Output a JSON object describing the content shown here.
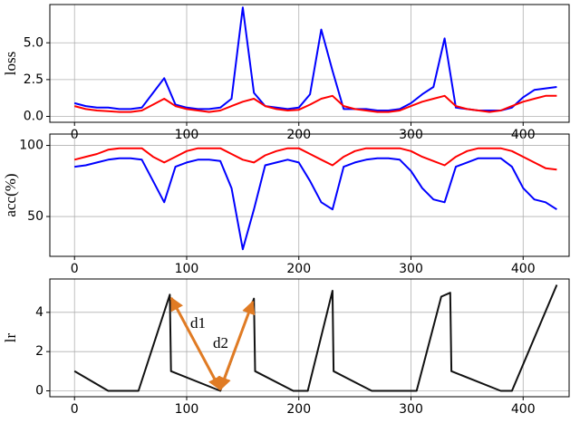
{
  "chart_data": [
    {
      "type": "line",
      "ylabel": "loss",
      "grid": true,
      "xlim": [
        -22,
        441
      ],
      "xticks": [
        0,
        100,
        200,
        300,
        400
      ],
      "ylim": [
        -0.4,
        7.6
      ],
      "yticks": [
        {
          "value": 0,
          "label": "0.0"
        },
        2.5,
        {
          "value": 5,
          "label": "5.0"
        }
      ],
      "x": [
        0,
        10,
        20,
        30,
        40,
        50,
        60,
        70,
        80,
        90,
        100,
        110,
        120,
        130,
        140,
        150,
        160,
        170,
        180,
        190,
        200,
        210,
        220,
        230,
        240,
        250,
        260,
        270,
        280,
        290,
        300,
        310,
        320,
        330,
        340,
        350,
        360,
        370,
        380,
        390,
        400,
        410,
        420,
        430
      ],
      "series": [
        {
          "color": "#0000ff",
          "values": [
            0.9,
            0.7,
            0.6,
            0.6,
            0.5,
            0.5,
            0.6,
            1.6,
            2.6,
            0.8,
            0.6,
            0.5,
            0.5,
            0.6,
            1.2,
            7.4,
            1.6,
            0.7,
            0.6,
            0.5,
            0.6,
            1.5,
            5.9,
            3.1,
            0.5,
            0.5,
            0.5,
            0.4,
            0.4,
            0.5,
            0.9,
            1.5,
            2.0,
            5.3,
            0.6,
            0.5,
            0.4,
            0.4,
            0.4,
            0.6,
            1.3,
            1.8,
            1.9,
            2.0
          ]
        },
        {
          "color": "#ff0000",
          "values": [
            0.7,
            0.5,
            0.4,
            0.35,
            0.3,
            0.3,
            0.4,
            0.8,
            1.2,
            0.7,
            0.5,
            0.4,
            0.3,
            0.4,
            0.7,
            1.0,
            1.2,
            0.7,
            0.5,
            0.4,
            0.45,
            0.8,
            1.2,
            1.4,
            0.7,
            0.5,
            0.4,
            0.3,
            0.3,
            0.4,
            0.7,
            1.0,
            1.2,
            1.4,
            0.7,
            0.5,
            0.4,
            0.3,
            0.4,
            0.7,
            1.0,
            1.2,
            1.4,
            1.4
          ]
        }
      ]
    },
    {
      "type": "line",
      "ylabel": "acc(%)",
      "grid": true,
      "xlim": [
        -22,
        441
      ],
      "xticks": [
        0,
        100,
        200,
        300,
        400
      ],
      "ylim": [
        22,
        108
      ],
      "yticks": [
        50,
        100
      ],
      "x": [
        0,
        10,
        20,
        30,
        40,
        50,
        60,
        70,
        80,
        90,
        100,
        110,
        120,
        130,
        140,
        150,
        160,
        170,
        180,
        190,
        200,
        210,
        220,
        230,
        240,
        250,
        260,
        270,
        280,
        290,
        300,
        310,
        320,
        330,
        340,
        350,
        360,
        370,
        380,
        390,
        400,
        410,
        420,
        430
      ],
      "series": [
        {
          "color": "#0000ff",
          "values": [
            85,
            86,
            88,
            90,
            91,
            91,
            90,
            75,
            60,
            85,
            88,
            90,
            90,
            89,
            70,
            27,
            55,
            86,
            88,
            90,
            88,
            75,
            60,
            55,
            85,
            88,
            90,
            91,
            91,
            90,
            82,
            70,
            62,
            60,
            85,
            88,
            91,
            91,
            91,
            85,
            70,
            62,
            60,
            55
          ]
        },
        {
          "color": "#ff0000",
          "values": [
            90,
            92,
            94,
            97,
            98,
            98,
            98,
            92,
            88,
            92,
            96,
            98,
            98,
            98,
            94,
            90,
            88,
            93,
            96,
            98,
            98,
            94,
            90,
            86,
            92,
            96,
            98,
            98,
            98,
            98,
            96,
            92,
            89,
            86,
            92,
            96,
            98,
            98,
            98,
            96,
            92,
            88,
            84,
            83
          ]
        }
      ]
    },
    {
      "type": "line",
      "ylabel": "lr",
      "grid": true,
      "xlim": [
        -22,
        441
      ],
      "xticks": [
        0,
        100,
        200,
        300,
        400
      ],
      "ylim": [
        -0.3,
        5.7
      ],
      "yticks": [
        0,
        2,
        4
      ],
      "x": [
        0,
        30,
        57,
        85,
        86,
        130,
        160,
        161,
        195,
        208,
        230,
        231,
        265,
        305,
        327,
        335,
        336,
        380,
        390,
        430
      ],
      "series": [
        {
          "color": "#111111",
          "values": [
            1,
            0,
            0,
            4.9,
            1,
            0,
            4.7,
            1,
            0,
            0,
            5.1,
            1,
            0,
            0,
            4.8,
            5.0,
            1,
            0,
            0,
            5.4
          ]
        }
      ],
      "annotations": [
        "d1",
        "d2"
      ]
    }
  ]
}
